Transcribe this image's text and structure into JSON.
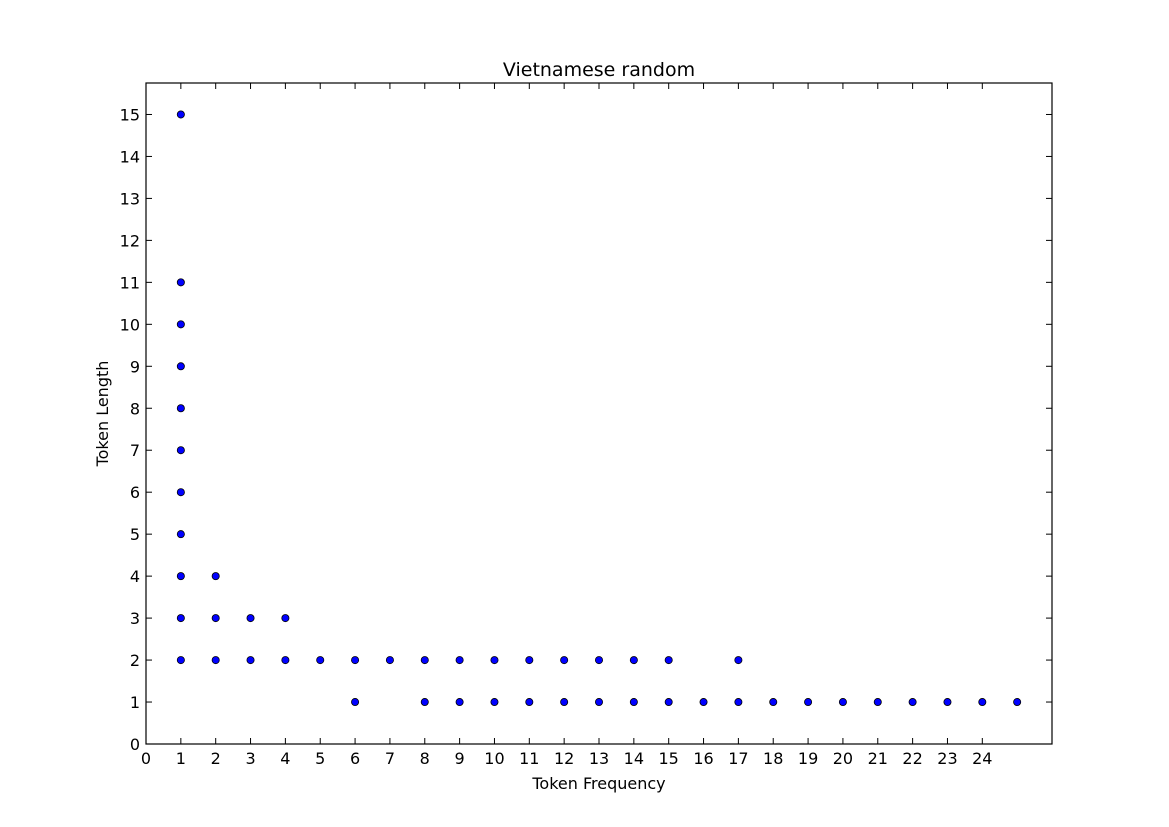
{
  "chart_data": {
    "type": "scatter",
    "title": "Vietnamese random",
    "xlabel": "Token Frequency",
    "ylabel": "Token Length",
    "xlim": [
      0,
      26
    ],
    "ylim": [
      0,
      15.75
    ],
    "xticks": [
      0,
      1,
      2,
      3,
      4,
      5,
      6,
      7,
      8,
      9,
      10,
      11,
      12,
      13,
      14,
      15,
      16,
      17,
      18,
      19,
      20,
      21,
      22,
      23,
      24
    ],
    "yticks": [
      0,
      1,
      2,
      3,
      4,
      5,
      6,
      7,
      8,
      9,
      10,
      11,
      12,
      13,
      14,
      15
    ],
    "grid": false,
    "legend": "none",
    "marker_color": "#0000ff",
    "marker_edge": "#000000",
    "points": [
      [
        1,
        15
      ],
      [
        1,
        11
      ],
      [
        1,
        10
      ],
      [
        1,
        9
      ],
      [
        1,
        8
      ],
      [
        1,
        7
      ],
      [
        1,
        6
      ],
      [
        1,
        5
      ],
      [
        1,
        4
      ],
      [
        1,
        3
      ],
      [
        1,
        2
      ],
      [
        2,
        4
      ],
      [
        2,
        3
      ],
      [
        2,
        2
      ],
      [
        3,
        3
      ],
      [
        3,
        2
      ],
      [
        4,
        3
      ],
      [
        4,
        2
      ],
      [
        5,
        2
      ],
      [
        6,
        2
      ],
      [
        6,
        1
      ],
      [
        7,
        2
      ],
      [
        8,
        2
      ],
      [
        8,
        1
      ],
      [
        9,
        2
      ],
      [
        9,
        1
      ],
      [
        10,
        2
      ],
      [
        10,
        1
      ],
      [
        11,
        2
      ],
      [
        11,
        1
      ],
      [
        12,
        2
      ],
      [
        12,
        1
      ],
      [
        13,
        2
      ],
      [
        13,
        1
      ],
      [
        14,
        2
      ],
      [
        14,
        1
      ],
      [
        15,
        2
      ],
      [
        15,
        1
      ],
      [
        16,
        1
      ],
      [
        17,
        2
      ],
      [
        17,
        1
      ],
      [
        18,
        1
      ],
      [
        19,
        1
      ],
      [
        20,
        1
      ],
      [
        21,
        1
      ],
      [
        22,
        1
      ],
      [
        23,
        1
      ],
      [
        24,
        1
      ],
      [
        25,
        1
      ]
    ]
  }
}
